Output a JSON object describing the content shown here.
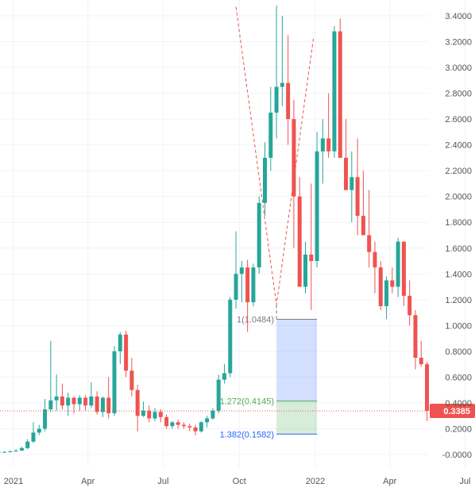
{
  "chart_data": {
    "type": "candlestick",
    "title": "",
    "xlabel": "",
    "ylabel": "",
    "ylim": [
      -0.05,
      3.5
    ],
    "y_ticks": [
      "3.4000",
      "3.2000",
      "3.0000",
      "2.8000",
      "2.6000",
      "2.4000",
      "2.2000",
      "2.0000",
      "1.8000",
      "1.6000",
      "1.4000",
      "1.2000",
      "1.0000",
      "0.8000",
      "0.6000",
      "0.4000",
      "0.2000",
      "-0.0000"
    ],
    "x_ticks": [
      {
        "label": "2021",
        "date": "2021-01-01"
      },
      {
        "label": "Apr",
        "date": "2021-04-01"
      },
      {
        "label": "Jul",
        "date": "2021-07-01"
      },
      {
        "label": "Oct",
        "date": "2021-10-01"
      },
      {
        "label": "2022",
        "date": "2022-01-01"
      },
      {
        "label": "Apr",
        "date": "2022-04-01"
      },
      {
        "label": "Jul",
        "date": "2022-07-01"
      }
    ],
    "candle_period_days": 7,
    "first_candle": "2020-12-14",
    "candles_ohlc": [
      [
        0.02,
        0.025,
        0.015,
        0.02
      ],
      [
        0.02,
        0.025,
        0.015,
        0.02
      ],
      [
        0.02,
        0.03,
        0.015,
        0.025
      ],
      [
        0.025,
        0.04,
        0.02,
        0.03
      ],
      [
        0.03,
        0.06,
        0.03,
        0.05
      ],
      [
        0.05,
        0.12,
        0.04,
        0.1
      ],
      [
        0.1,
        0.25,
        0.09,
        0.17
      ],
      [
        0.17,
        0.23,
        0.15,
        0.2
      ],
      [
        0.2,
        0.43,
        0.18,
        0.35
      ],
      [
        0.35,
        0.88,
        0.33,
        0.42
      ],
      [
        0.42,
        0.62,
        0.34,
        0.45
      ],
      [
        0.45,
        0.55,
        0.35,
        0.38
      ],
      [
        0.38,
        0.48,
        0.3,
        0.44
      ],
      [
        0.44,
        0.45,
        0.32,
        0.39
      ],
      [
        0.39,
        0.46,
        0.34,
        0.44
      ],
      [
        0.44,
        0.46,
        0.34,
        0.38
      ],
      [
        0.38,
        0.56,
        0.36,
        0.45
      ],
      [
        0.45,
        0.49,
        0.31,
        0.33
      ],
      [
        0.33,
        0.45,
        0.29,
        0.44
      ],
      [
        0.44,
        0.6,
        0.28,
        0.32
      ],
      [
        0.32,
        0.84,
        0.3,
        0.8
      ],
      [
        0.8,
        0.95,
        0.7,
        0.93
      ],
      [
        0.93,
        0.96,
        0.6,
        0.65
      ],
      [
        0.65,
        0.75,
        0.45,
        0.5
      ],
      [
        0.5,
        0.54,
        0.18,
        0.3
      ],
      [
        0.3,
        0.41,
        0.29,
        0.34
      ],
      [
        0.34,
        0.38,
        0.25,
        0.28
      ],
      [
        0.28,
        0.36,
        0.26,
        0.33
      ],
      [
        0.33,
        0.35,
        0.25,
        0.29
      ],
      [
        0.29,
        0.31,
        0.2,
        0.22
      ],
      [
        0.22,
        0.26,
        0.2,
        0.25
      ],
      [
        0.25,
        0.27,
        0.2,
        0.23
      ],
      [
        0.23,
        0.25,
        0.2,
        0.22
      ],
      [
        0.22,
        0.24,
        0.18,
        0.21
      ],
      [
        0.21,
        0.23,
        0.15,
        0.18
      ],
      [
        0.18,
        0.26,
        0.17,
        0.25
      ],
      [
        0.25,
        0.3,
        0.21,
        0.28
      ],
      [
        0.28,
        0.36,
        0.27,
        0.34
      ],
      [
        0.34,
        0.62,
        0.32,
        0.58
      ],
      [
        0.58,
        0.7,
        0.55,
        0.63
      ],
      [
        0.63,
        1.22,
        0.6,
        1.2
      ],
      [
        1.2,
        1.73,
        1.13,
        1.4
      ],
      [
        1.4,
        1.5,
        1.18,
        1.45
      ],
      [
        1.45,
        1.51,
        0.95,
        1.18
      ],
      [
        1.18,
        1.48,
        1.15,
        1.45
      ],
      [
        1.45,
        2.0,
        1.4,
        1.95
      ],
      [
        1.95,
        2.42,
        1.85,
        2.3
      ],
      [
        2.3,
        2.85,
        2.2,
        2.65
      ],
      [
        2.65,
        3.48,
        2.45,
        2.85
      ],
      [
        2.85,
        3.4,
        2.7,
        2.88
      ],
      [
        2.88,
        3.25,
        2.4,
        2.6
      ],
      [
        2.6,
        2.75,
        1.6,
        2.0
      ],
      [
        2.0,
        2.15,
        1.45,
        1.3
      ],
      [
        1.3,
        1.65,
        1.25,
        1.55
      ],
      [
        1.55,
        2.1,
        1.12,
        1.5
      ],
      [
        1.5,
        2.5,
        1.45,
        2.35
      ],
      [
        2.35,
        2.6,
        2.1,
        2.45
      ],
      [
        2.45,
        2.8,
        2.3,
        2.35
      ],
      [
        2.35,
        3.32,
        2.3,
        3.28
      ],
      [
        3.28,
        3.38,
        2.6,
        2.3
      ],
      [
        2.3,
        2.6,
        2.05,
        2.05
      ],
      [
        2.05,
        2.35,
        1.8,
        2.15
      ],
      [
        2.15,
        2.45,
        1.7,
        1.85
      ],
      [
        1.85,
        2.2,
        1.75,
        1.7
      ],
      [
        1.7,
        2.05,
        1.45,
        1.57
      ],
      [
        1.57,
        1.65,
        1.25,
        1.45
      ],
      [
        1.45,
        1.5,
        1.12,
        1.15
      ],
      [
        1.15,
        1.38,
        1.05,
        1.35
      ],
      [
        1.35,
        1.45,
        1.25,
        1.3
      ],
      [
        1.3,
        1.68,
        1.22,
        1.65
      ],
      [
        1.65,
        1.65,
        1.15,
        1.23
      ],
      [
        1.23,
        1.35,
        1.0,
        1.08
      ],
      [
        1.08,
        1.12,
        0.66,
        0.75
      ],
      [
        0.75,
        0.88,
        0.68,
        0.7
      ],
      [
        0.7,
        0.72,
        0.26,
        0.3385
      ]
    ],
    "last_price": "0.3385",
    "last_price_value": 0.3385,
    "fib_extension": {
      "points": [
        {
          "date": "2021-09-27",
          "value": 3.47
        },
        {
          "date": "2021-11-15",
          "value": 1.16
        },
        {
          "date": "2021-12-30",
          "value": 3.24
        }
      ],
      "levels": [
        {
          "label": "1(1.0484)",
          "value": 1.0484,
          "color": "#787b86"
        },
        {
          "label": "1.272(0.4145)",
          "value": 0.4145,
          "color": "#4caf50"
        },
        {
          "label": "1.382(0.1582)",
          "value": 0.1582,
          "color": "#2962ff"
        }
      ],
      "box_start": "2021-11-15",
      "box_end": "2022-01-03"
    },
    "colors": {
      "up": "#26a69a",
      "down": "#ef5350",
      "grid": "#f0f3fa",
      "axis_text": "#555555"
    }
  }
}
